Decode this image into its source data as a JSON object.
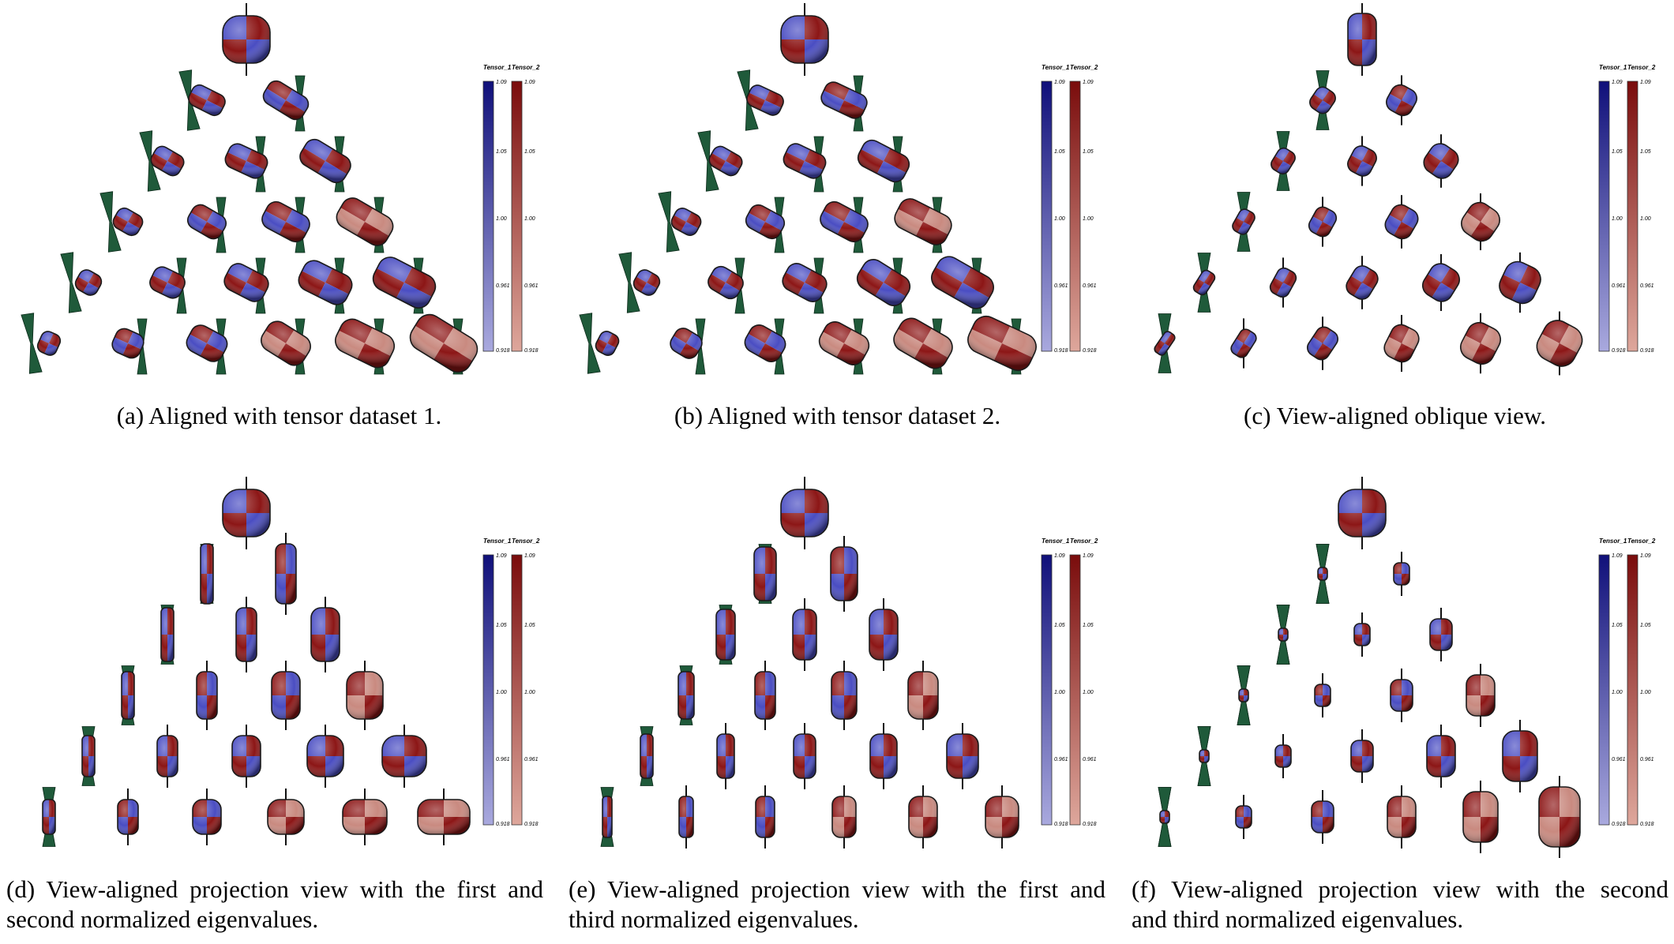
{
  "colorbar": {
    "tensor1_title": "Tensor_1",
    "tensor2_title": "Tensor_2",
    "ticks": [
      "1.09",
      "1.05",
      "1.00",
      "0.961",
      "0.918"
    ]
  },
  "colors": {
    "blue": "#4a4dc2",
    "red": "#8c1616",
    "pink": "#c98a80",
    "glyph_green": "#1f5a3a",
    "outline": "#1a1a1a"
  },
  "panels": [
    {
      "id": "a",
      "caption": "(a) Aligned with tensor dataset 1."
    },
    {
      "id": "b",
      "caption": "(b) Aligned with tensor dataset 2."
    },
    {
      "id": "c",
      "caption": "(c) View-aligned oblique view."
    },
    {
      "id": "d",
      "caption_line1": "(d) View-aligned projection view with the first and",
      "caption_line2": "second normalized eigenvalues."
    },
    {
      "id": "e",
      "caption_line1": "(e) View-aligned projection view with the first and",
      "caption_line2": "third normalized eigenvalues."
    },
    {
      "id": "f",
      "caption_line1": "(f) View-aligned projection view with the second",
      "caption_line2": "and third normalized eigenvalues."
    }
  ]
}
